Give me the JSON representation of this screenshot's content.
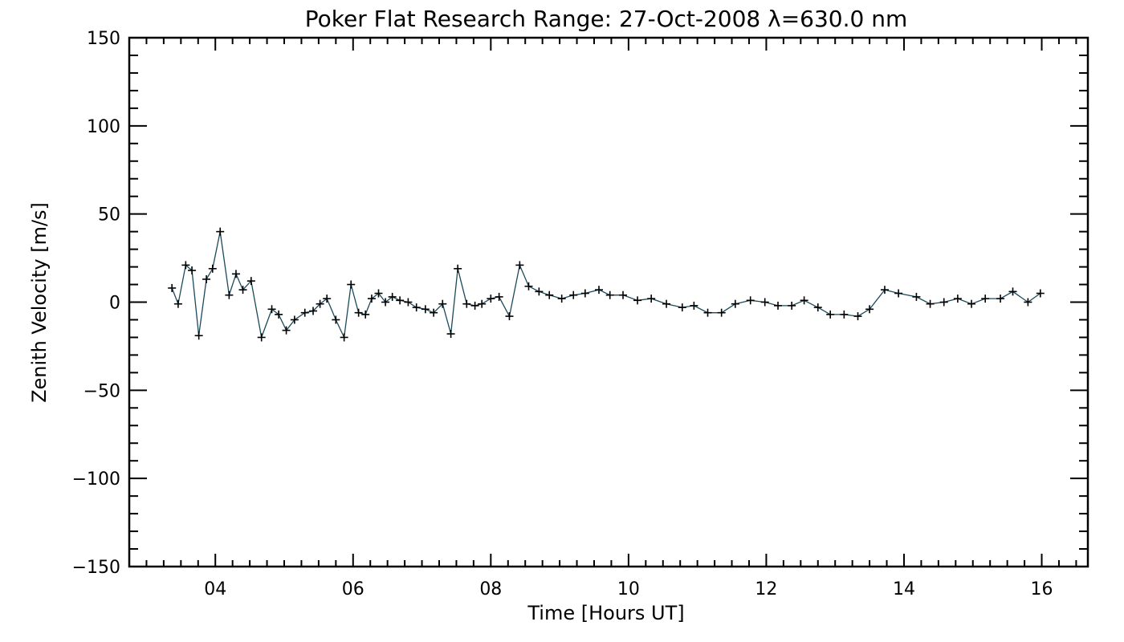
{
  "chart_data": {
    "type": "line",
    "title": "Poker Flat Research Range: 27-Oct-2008 λ=630.0 nm",
    "xlabel": "Time [Hours UT]",
    "ylabel": "Zenith Velocity [m/s]",
    "xlim": [
      2.75,
      16.67
    ],
    "ylim": [
      -150,
      150
    ],
    "x_ticks": [
      4,
      6,
      8,
      10,
      12,
      14,
      16
    ],
    "x_tick_labels": [
      "04",
      "06",
      "08",
      "10",
      "12",
      "14",
      "16"
    ],
    "y_ticks": [
      -150,
      -100,
      -50,
      0,
      50,
      100,
      150
    ],
    "y_tick_labels": [
      "−150",
      "−100",
      "−50",
      "0",
      "50",
      "100",
      "150"
    ],
    "grid": false,
    "marker": "plus",
    "line_color": "#1a4a5a",
    "marker_color": "#000000",
    "series": [
      {
        "name": "",
        "x": [
          3.37,
          3.46,
          3.57,
          3.66,
          3.76,
          3.87,
          3.96,
          4.07,
          4.2,
          4.3,
          4.4,
          4.52,
          4.67,
          4.82,
          4.92,
          5.03,
          5.15,
          5.3,
          5.42,
          5.52,
          5.62,
          5.75,
          5.87,
          5.97,
          6.08,
          6.18,
          6.27,
          6.37,
          6.47,
          6.57,
          6.68,
          6.8,
          6.92,
          7.05,
          7.17,
          7.3,
          7.42,
          7.52,
          7.65,
          7.77,
          7.87,
          8.0,
          8.12,
          8.27,
          8.42,
          8.55,
          8.7,
          8.85,
          9.03,
          9.2,
          9.37,
          9.57,
          9.73,
          9.92,
          10.13,
          10.33,
          10.55,
          10.78,
          10.95,
          11.15,
          11.35,
          11.55,
          11.77,
          11.98,
          12.17,
          12.37,
          12.55,
          12.75,
          12.93,
          13.13,
          13.33,
          13.5,
          13.72,
          13.92,
          14.18,
          14.38,
          14.58,
          14.78,
          14.98,
          15.18,
          15.4,
          15.58,
          15.8,
          15.98
        ],
        "y": [
          8,
          -1,
          21,
          18,
          -19,
          13,
          19,
          40,
          4,
          16,
          7,
          12,
          -20,
          -4,
          -7,
          -16,
          -10,
          -6,
          -5,
          -1,
          2,
          -10,
          -20,
          10,
          -6,
          -7,
          2,
          5,
          0,
          3,
          1,
          0,
          -3,
          -4,
          -6,
          -1,
          -18,
          19,
          -1,
          -2,
          -1,
          2,
          3,
          -8,
          21,
          9,
          6,
          4,
          2,
          4,
          5,
          7,
          4,
          4,
          1,
          2,
          -1,
          -3,
          -2,
          -6,
          -6,
          -1,
          1,
          0,
          -2,
          -2,
          1,
          -3,
          -7,
          -7,
          -8,
          -4,
          7,
          5,
          3,
          -1,
          0,
          2,
          -1,
          2,
          2,
          6,
          0,
          5
        ]
      }
    ]
  }
}
